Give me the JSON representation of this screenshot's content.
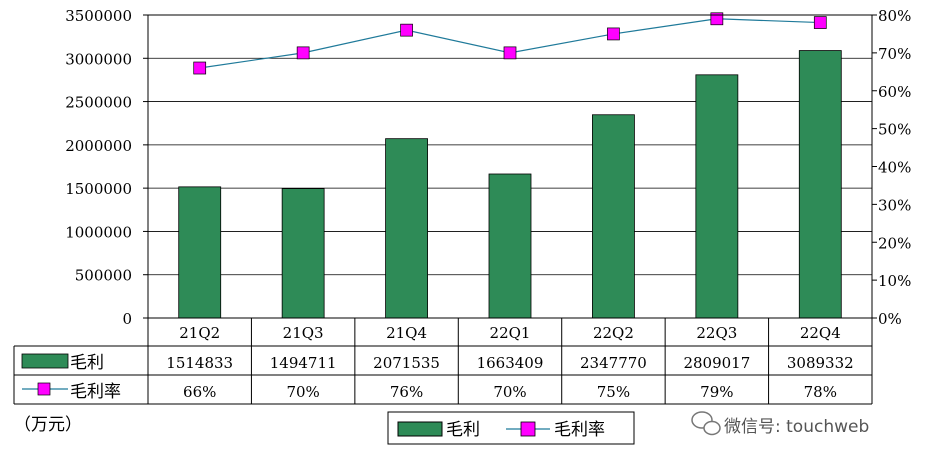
{
  "chart_data": {
    "type": "bar+line",
    "categories": [
      "21Q2",
      "21Q3",
      "21Q4",
      "22Q1",
      "22Q2",
      "22Q3",
      "22Q4"
    ],
    "series": [
      {
        "name": "毛利",
        "type": "bar",
        "axis": "left",
        "color": "#2e8b57",
        "values": [
          1514833,
          1494711,
          2071535,
          1663409,
          2347770,
          2809017,
          3089332
        ]
      },
      {
        "name": "毛利率",
        "type": "line",
        "axis": "right",
        "color": "#ff00ff",
        "line_color": "#1f7a9a",
        "values": [
          0.66,
          0.7,
          0.76,
          0.7,
          0.75,
          0.79,
          0.78
        ],
        "labels": [
          "66%",
          "70%",
          "76%",
          "70%",
          "75%",
          "79%",
          "78%"
        ]
      }
    ],
    "y_left": {
      "min": 0,
      "max": 3500000,
      "ticks": [
        "0",
        "500000",
        "1000000",
        "1500000",
        "2000000",
        "2500000",
        "3000000",
        "3500000"
      ]
    },
    "y_right": {
      "min": 0,
      "max": 0.8,
      "ticks": [
        "0%",
        "10%",
        "20%",
        "30%",
        "40%",
        "50%",
        "60%",
        "70%",
        "80%"
      ]
    },
    "grid": "horizontal",
    "legend": "bottom-center",
    "data_table": true,
    "unit_note": "（万元）",
    "watermark": "微信号: touchweb"
  }
}
